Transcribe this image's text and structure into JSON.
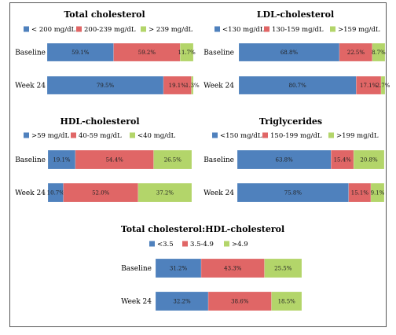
{
  "colors": {
    "blue": "#4F81BD",
    "red": "#E06666",
    "green": "#B3D56A",
    "text": "#000000"
  },
  "chart_data": [
    {
      "type": "bar",
      "orientation": "horizontal",
      "stacked": true,
      "title": "Total cholesterol",
      "categories": [
        "Baseline",
        "Week 24"
      ],
      "series": [
        {
          "name": "< 200 mg/dL",
          "values": [
            59.1,
            79.5
          ],
          "labels": [
            "59.1%",
            "79.5%"
          ]
        },
        {
          "name": "200-239 mg/dL",
          "values": [
            59.2,
            19.1
          ],
          "labels": [
            "59.2%",
            "19.1%"
          ]
        },
        {
          "name": "> 239 mg/dL",
          "values": [
            11.7,
            1.3
          ],
          "labels": [
            "11.7%",
            "1.3%"
          ]
        }
      ],
      "legend": "top"
    },
    {
      "type": "bar",
      "orientation": "horizontal",
      "stacked": true,
      "title": "LDL-cholesterol",
      "categories": [
        "Baseline",
        "Week 24"
      ],
      "series": [
        {
          "name": "<130 mg/dL",
          "values": [
            68.8,
            80.7
          ],
          "labels": [
            "68.8%",
            "80.7%"
          ]
        },
        {
          "name": "130-159 mg/dL",
          "values": [
            22.5,
            17.1
          ],
          "labels": [
            "22.5%",
            "17.1%"
          ]
        },
        {
          "name": ">159 mg/dL",
          "values": [
            8.7,
            2.7
          ],
          "labels": [
            "8.7%",
            "2.7%"
          ]
        }
      ],
      "legend": "top"
    },
    {
      "type": "bar",
      "orientation": "horizontal",
      "stacked": true,
      "title": "HDL-cholesterol",
      "categories": [
        "Baseline",
        "Week 24"
      ],
      "series": [
        {
          "name": ">59 mg/dL",
          "values": [
            19.1,
            10.7
          ],
          "labels": [
            "19.1%",
            "10.7%"
          ]
        },
        {
          "name": "40-59 mg/dL",
          "values": [
            54.4,
            52.0
          ],
          "labels": [
            "54.4%",
            "52.0%"
          ]
        },
        {
          "name": "<40 mg/dL",
          "values": [
            26.5,
            37.2
          ],
          "labels": [
            "26.5%",
            "37.2%"
          ]
        }
      ],
      "legend": "top"
    },
    {
      "type": "bar",
      "orientation": "horizontal",
      "stacked": true,
      "title": "Triglycerides",
      "categories": [
        "Baseline",
        "Week 24"
      ],
      "series": [
        {
          "name": "<150 mg/dL",
          "values": [
            63.8,
            75.8
          ],
          "labels": [
            "63.8%",
            "75.8%"
          ]
        },
        {
          "name": "150-199 mg/dL",
          "values": [
            15.4,
            15.1
          ],
          "labels": [
            "15.4%",
            "15.1%"
          ]
        },
        {
          "name": ">199 mg/dL",
          "values": [
            20.8,
            9.1
          ],
          "labels": [
            "20.8%",
            "9.1%"
          ]
        }
      ],
      "legend": "top"
    },
    {
      "type": "bar",
      "orientation": "horizontal",
      "stacked": true,
      "title": "Total cholesterol:HDL-cholesterol",
      "categories": [
        "Baseline",
        "Week 24"
      ],
      "series": [
        {
          "name": "<3.5",
          "values": [
            31.2,
            32.2
          ],
          "labels": [
            "31.2%",
            "32.2%"
          ]
        },
        {
          "name": "3.5-4.9",
          "values": [
            43.3,
            38.6
          ],
          "labels": [
            "43.3%",
            "38.6%"
          ]
        },
        {
          "name": ">4.9",
          "values": [
            25.5,
            18.5
          ],
          "labels": [
            "25.5%",
            "18.5%"
          ]
        }
      ],
      "legend": "top"
    }
  ]
}
